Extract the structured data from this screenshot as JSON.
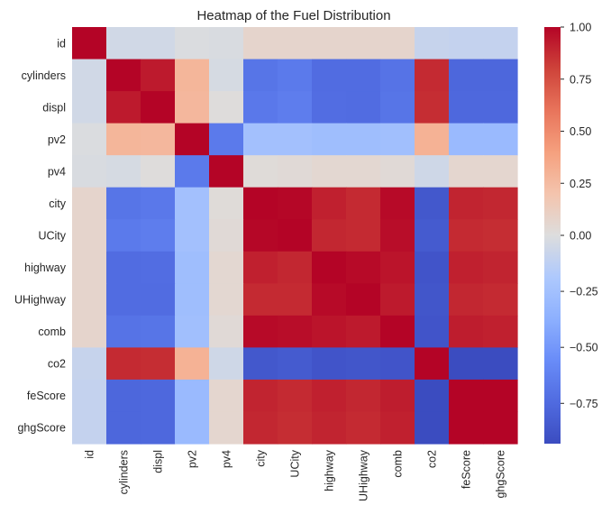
{
  "chart_data": {
    "type": "heatmap",
    "title": "Heatmap of the Fuel Distribution",
    "xlabel": "",
    "ylabel": "",
    "rows": [
      "id",
      "cylinders",
      "displ",
      "pv2",
      "pv4",
      "city",
      "UCity",
      "highway",
      "UHighway",
      "comb",
      "co2",
      "feScore",
      "ghgScore"
    ],
    "columns": [
      "id",
      "cylinders",
      "displ",
      "pv2",
      "pv4",
      "city",
      "UCity",
      "highway",
      "UHighway",
      "comb",
      "co2",
      "feScore",
      "ghgScore"
    ],
    "values": [
      [
        1.0,
        -0.05,
        -0.05,
        -0.01,
        -0.02,
        0.07,
        0.07,
        0.07,
        0.07,
        0.07,
        -0.09,
        -0.1,
        -0.1
      ],
      [
        -0.05,
        1.0,
        0.93,
        0.28,
        -0.03,
        -0.69,
        -0.66,
        -0.74,
        -0.74,
        -0.7,
        0.88,
        -0.77,
        -0.77
      ],
      [
        -0.05,
        0.93,
        1.0,
        0.27,
        0.01,
        -0.67,
        -0.64,
        -0.73,
        -0.74,
        -0.69,
        0.87,
        -0.76,
        -0.76
      ],
      [
        -0.01,
        0.28,
        0.27,
        1.0,
        -0.66,
        -0.25,
        -0.25,
        -0.27,
        -0.27,
        -0.26,
        0.3,
        -0.3,
        -0.3
      ],
      [
        -0.02,
        -0.03,
        0.01,
        -0.66,
        1.0,
        0.02,
        0.03,
        0.05,
        0.05,
        0.03,
        -0.06,
        0.06,
        0.06
      ],
      [
        0.07,
        -0.69,
        -0.67,
        -0.25,
        0.02,
        1.0,
        0.99,
        0.91,
        0.88,
        0.98,
        -0.86,
        0.9,
        0.89
      ],
      [
        0.07,
        -0.66,
        -0.64,
        -0.25,
        0.03,
        0.99,
        1.0,
        0.89,
        0.88,
        0.97,
        -0.84,
        0.88,
        0.87
      ],
      [
        0.07,
        -0.74,
        -0.73,
        -0.27,
        0.05,
        0.91,
        0.89,
        1.0,
        0.98,
        0.95,
        -0.88,
        0.91,
        0.9
      ],
      [
        0.07,
        -0.74,
        -0.74,
        -0.27,
        0.05,
        0.88,
        0.88,
        0.98,
        1.0,
        0.93,
        -0.87,
        0.89,
        0.88
      ],
      [
        0.07,
        -0.7,
        -0.69,
        -0.26,
        0.03,
        0.98,
        0.97,
        0.95,
        0.93,
        1.0,
        -0.88,
        0.92,
        0.91
      ],
      [
        -0.09,
        0.88,
        0.87,
        0.3,
        -0.06,
        -0.86,
        -0.84,
        -0.88,
        -0.87,
        -0.88,
        1.0,
        -0.93,
        -0.93
      ],
      [
        -0.1,
        -0.77,
        -0.76,
        -0.3,
        0.06,
        0.9,
        0.88,
        0.91,
        0.89,
        0.92,
        -0.93,
        1.0,
        1.0
      ],
      [
        -0.1,
        -0.77,
        -0.76,
        -0.3,
        0.06,
        0.89,
        0.87,
        0.9,
        0.88,
        0.91,
        -0.93,
        1.0,
        1.0
      ]
    ],
    "colormap": "coolwarm",
    "vmin": -0.93,
    "vmax": 1.0,
    "colorbar_ticks": [
      1.0,
      0.75,
      0.5,
      0.25,
      0.0,
      -0.25,
      -0.5,
      -0.75
    ],
    "colorbar_tick_labels": [
      "1.00",
      "0.75",
      "0.50",
      "0.25",
      "0.00",
      "−0.25",
      "−0.50",
      "−0.75"
    ],
    "colors": {
      "low": "#3b4cc0",
      "mid": "#dddddd",
      "high": "#b40426"
    },
    "grid": false
  }
}
